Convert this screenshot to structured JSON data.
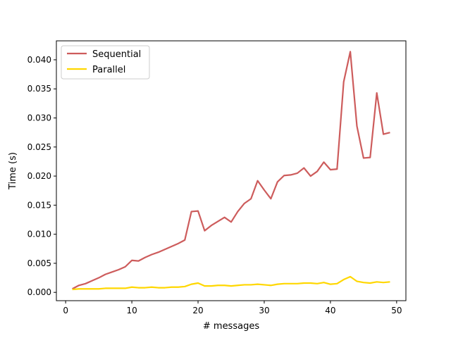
{
  "chart_data": {
    "type": "line",
    "title": "",
    "xlabel": "# messages",
    "ylabel": "Time (s)",
    "xlim": [
      -1.4,
      51.4
    ],
    "ylim": [
      -0.00143,
      0.04326
    ],
    "x_ticks": [
      0,
      10,
      20,
      30,
      40,
      50
    ],
    "x_tick_labels": [
      "0",
      "10",
      "20",
      "30",
      "40",
      "50"
    ],
    "y_ticks": [
      0,
      0.005,
      0.01,
      0.015,
      0.02,
      0.025,
      0.03,
      0.035,
      0.04
    ],
    "y_tick_labels": [
      "0.000",
      "0.005",
      "0.010",
      "0.015",
      "0.020",
      "0.025",
      "0.030",
      "0.035",
      "0.040"
    ],
    "grid": false,
    "legend_position": "upper-left",
    "x": [
      1,
      2,
      3,
      4,
      5,
      6,
      7,
      8,
      9,
      10,
      11,
      12,
      13,
      14,
      15,
      16,
      17,
      18,
      19,
      20,
      21,
      22,
      23,
      24,
      25,
      26,
      27,
      28,
      29,
      30,
      31,
      32,
      33,
      34,
      35,
      36,
      37,
      38,
      39,
      40,
      41,
      42,
      43,
      44,
      45,
      46,
      47,
      48,
      49
    ],
    "series": [
      {
        "name": "Sequential",
        "color": "#cd5c5c",
        "values": [
          0.0006,
          0.0012,
          0.0015,
          0.002,
          0.0025,
          0.0031,
          0.0035,
          0.0039,
          0.0044,
          0.0055,
          0.0054,
          0.006,
          0.0065,
          0.0069,
          0.0074,
          0.0079,
          0.0084,
          0.009,
          0.0139,
          0.014,
          0.0106,
          0.0115,
          0.0122,
          0.0129,
          0.0121,
          0.0139,
          0.0153,
          0.0161,
          0.0192,
          0.0176,
          0.0161,
          0.019,
          0.0201,
          0.0202,
          0.0205,
          0.0214,
          0.02,
          0.0208,
          0.0224,
          0.0211,
          0.0212,
          0.0362,
          0.0414,
          0.0286,
          0.0231,
          0.0232,
          0.0343,
          0.0272,
          0.0275
        ]
      },
      {
        "name": "Parallel",
        "color": "#ffd700",
        "values": [
          0.0005,
          0.0006,
          0.0006,
          0.0006,
          0.0006,
          0.0007,
          0.0007,
          0.0007,
          0.0007,
          0.0009,
          0.0008,
          0.0008,
          0.0009,
          0.0008,
          0.0008,
          0.0009,
          0.0009,
          0.001,
          0.0014,
          0.0016,
          0.0011,
          0.0011,
          0.0012,
          0.0012,
          0.0011,
          0.0012,
          0.0013,
          0.0013,
          0.0014,
          0.0013,
          0.0012,
          0.0014,
          0.0015,
          0.0015,
          0.0015,
          0.0016,
          0.0016,
          0.0015,
          0.0017,
          0.0014,
          0.0015,
          0.0022,
          0.0027,
          0.0019,
          0.0017,
          0.0016,
          0.0018,
          0.0017,
          0.0018
        ]
      }
    ]
  }
}
